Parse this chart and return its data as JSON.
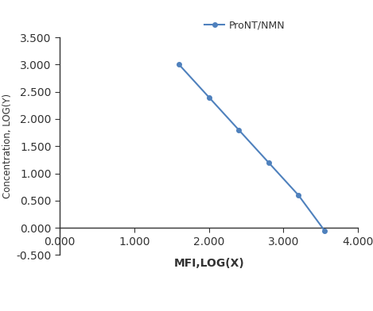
{
  "x": [
    1.6,
    2.0,
    2.4,
    2.8,
    3.2,
    3.55
  ],
  "y": [
    3.0,
    2.4,
    1.8,
    1.2,
    0.6,
    -0.05
  ],
  "line_color": "#4f81bd",
  "marker": "o",
  "marker_size": 4,
  "line_width": 1.5,
  "legend_label": "ProNT/NMN",
  "xlabel": "MFI,LOG(X)",
  "ylabel": "Concentration, LOG(Y)",
  "xlim": [
    0.0,
    4.0
  ],
  "ylim": [
    -0.5,
    3.5
  ],
  "xticks": [
    0.0,
    1.0,
    2.0,
    3.0,
    4.0
  ],
  "yticks": [
    -0.5,
    0.0,
    0.5,
    1.0,
    1.5,
    2.0,
    2.5,
    3.0,
    3.5
  ],
  "xtick_labels": [
    "0.000",
    "1.000",
    "2.000",
    "3.000",
    "4.000"
  ],
  "ytick_labels": [
    "-0.500",
    "0.000",
    "0.500",
    "1.000",
    "1.500",
    "2.000",
    "2.500",
    "3.000",
    "3.500"
  ],
  "background_color": "#ffffff",
  "font_color": "#333333",
  "tick_fontsize": 8,
  "legend_fontsize": 9,
  "xlabel_fontsize": 10,
  "ylabel_fontsize": 8.5
}
